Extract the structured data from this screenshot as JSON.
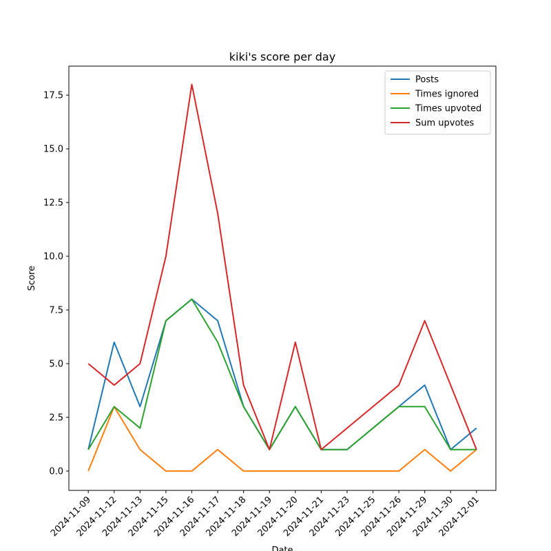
{
  "chart_data": {
    "type": "line",
    "title": "kiki's score per day",
    "xlabel": "Date",
    "ylabel": "Score",
    "categories": [
      "2024-11-09",
      "2024-11-12",
      "2024-11-13",
      "2024-11-15",
      "2024-11-16",
      "2024-11-17",
      "2024-11-18",
      "2024-11-19",
      "2024-11-20",
      "2024-11-21",
      "2024-11-23",
      "2024-11-25",
      "2024-11-26",
      "2024-11-29",
      "2024-11-30",
      "2024-12-01"
    ],
    "series": [
      {
        "name": "Posts",
        "color": "#1f77b4",
        "values": [
          1,
          6,
          3,
          7,
          8,
          7,
          3,
          1,
          3,
          1,
          1,
          2,
          3,
          4,
          1,
          2
        ]
      },
      {
        "name": "Times ignored",
        "color": "#ff7f0e",
        "values": [
          0,
          3,
          1,
          0,
          0,
          1,
          0,
          0,
          0,
          0,
          0,
          0,
          0,
          1,
          0,
          1
        ]
      },
      {
        "name": "Times upvoted",
        "color": "#2ca02c",
        "values": [
          1,
          3,
          2,
          7,
          8,
          6,
          3,
          1,
          3,
          1,
          1,
          2,
          3,
          3,
          1,
          1
        ]
      },
      {
        "name": "Sum upvotes",
        "color": "#d62728",
        "values": [
          5,
          4,
          5,
          10,
          18,
          12,
          4,
          1,
          6,
          1,
          2,
          3,
          4,
          7,
          4,
          1
        ]
      }
    ],
    "ylim": [
      -0.9,
      18.85
    ],
    "yticks": [
      {
        "value": 0,
        "label": "0.0"
      },
      2.5,
      {
        "value": 5,
        "label": "5.0"
      },
      7.5,
      {
        "value": 10,
        "label": "10.0"
      },
      12.5,
      {
        "value": 15,
        "label": "15.0"
      },
      17.5
    ],
    "legend": "upper right",
    "grid": false
  }
}
